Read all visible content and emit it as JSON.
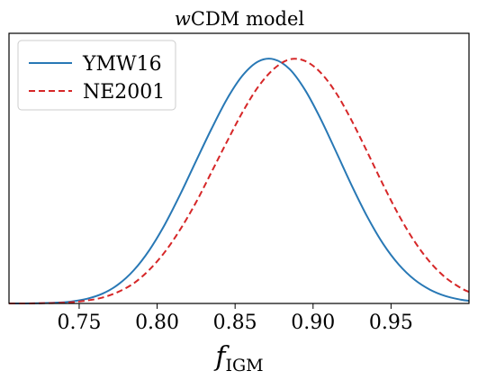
{
  "chart_data": {
    "type": "line",
    "title": "wCDM model",
    "title_parts": {
      "italic": "w",
      "rest": "CDM model"
    },
    "xlabel": "f",
    "xlabel_sub": "IGM",
    "ylabel": "",
    "xlim": [
      0.705,
      1.0
    ],
    "ylim": [
      0,
      1.0
    ],
    "x_ticks": [
      0.75,
      0.8,
      0.85,
      0.9,
      0.95
    ],
    "x_tick_labels": [
      "0.75",
      "0.80",
      "0.85",
      "0.90",
      "0.95"
    ],
    "y_ticks_shown": false,
    "grid": false,
    "legend_position": "top-left",
    "x": [
      0.705,
      0.715,
      0.725,
      0.735,
      0.745,
      0.755,
      0.765,
      0.775,
      0.785,
      0.795,
      0.805,
      0.815,
      0.825,
      0.835,
      0.845,
      0.855,
      0.865,
      0.875,
      0.885,
      0.895,
      0.905,
      0.915,
      0.925,
      0.935,
      0.945,
      0.955,
      0.965,
      0.975,
      0.985,
      0.995,
      1.0
    ],
    "series": [
      {
        "name": "YMW16",
        "color": "#2878b5",
        "dash": "solid",
        "values": [
          0.0,
          0.0,
          0.001,
          0.003,
          0.008,
          0.019,
          0.04,
          0.077,
          0.135,
          0.217,
          0.322,
          0.446,
          0.58,
          0.712,
          0.834,
          0.929,
          0.985,
          0.993,
          0.953,
          0.867,
          0.749,
          0.614,
          0.477,
          0.35,
          0.242,
          0.158,
          0.097,
          0.056,
          0.03,
          0.015,
          0.011
        ]
      },
      {
        "name": "NE2001",
        "color": "#d62728",
        "dash": "dashed",
        "values": [
          0.0,
          0.0,
          0.001,
          0.002,
          0.005,
          0.012,
          0.024,
          0.047,
          0.082,
          0.137,
          0.21,
          0.303,
          0.412,
          0.536,
          0.661,
          0.781,
          0.883,
          0.955,
          0.993,
          0.986,
          0.938,
          0.854,
          0.741,
          0.613,
          0.482,
          0.359,
          0.253,
          0.168,
          0.105,
          0.062,
          0.047
        ]
      }
    ]
  }
}
